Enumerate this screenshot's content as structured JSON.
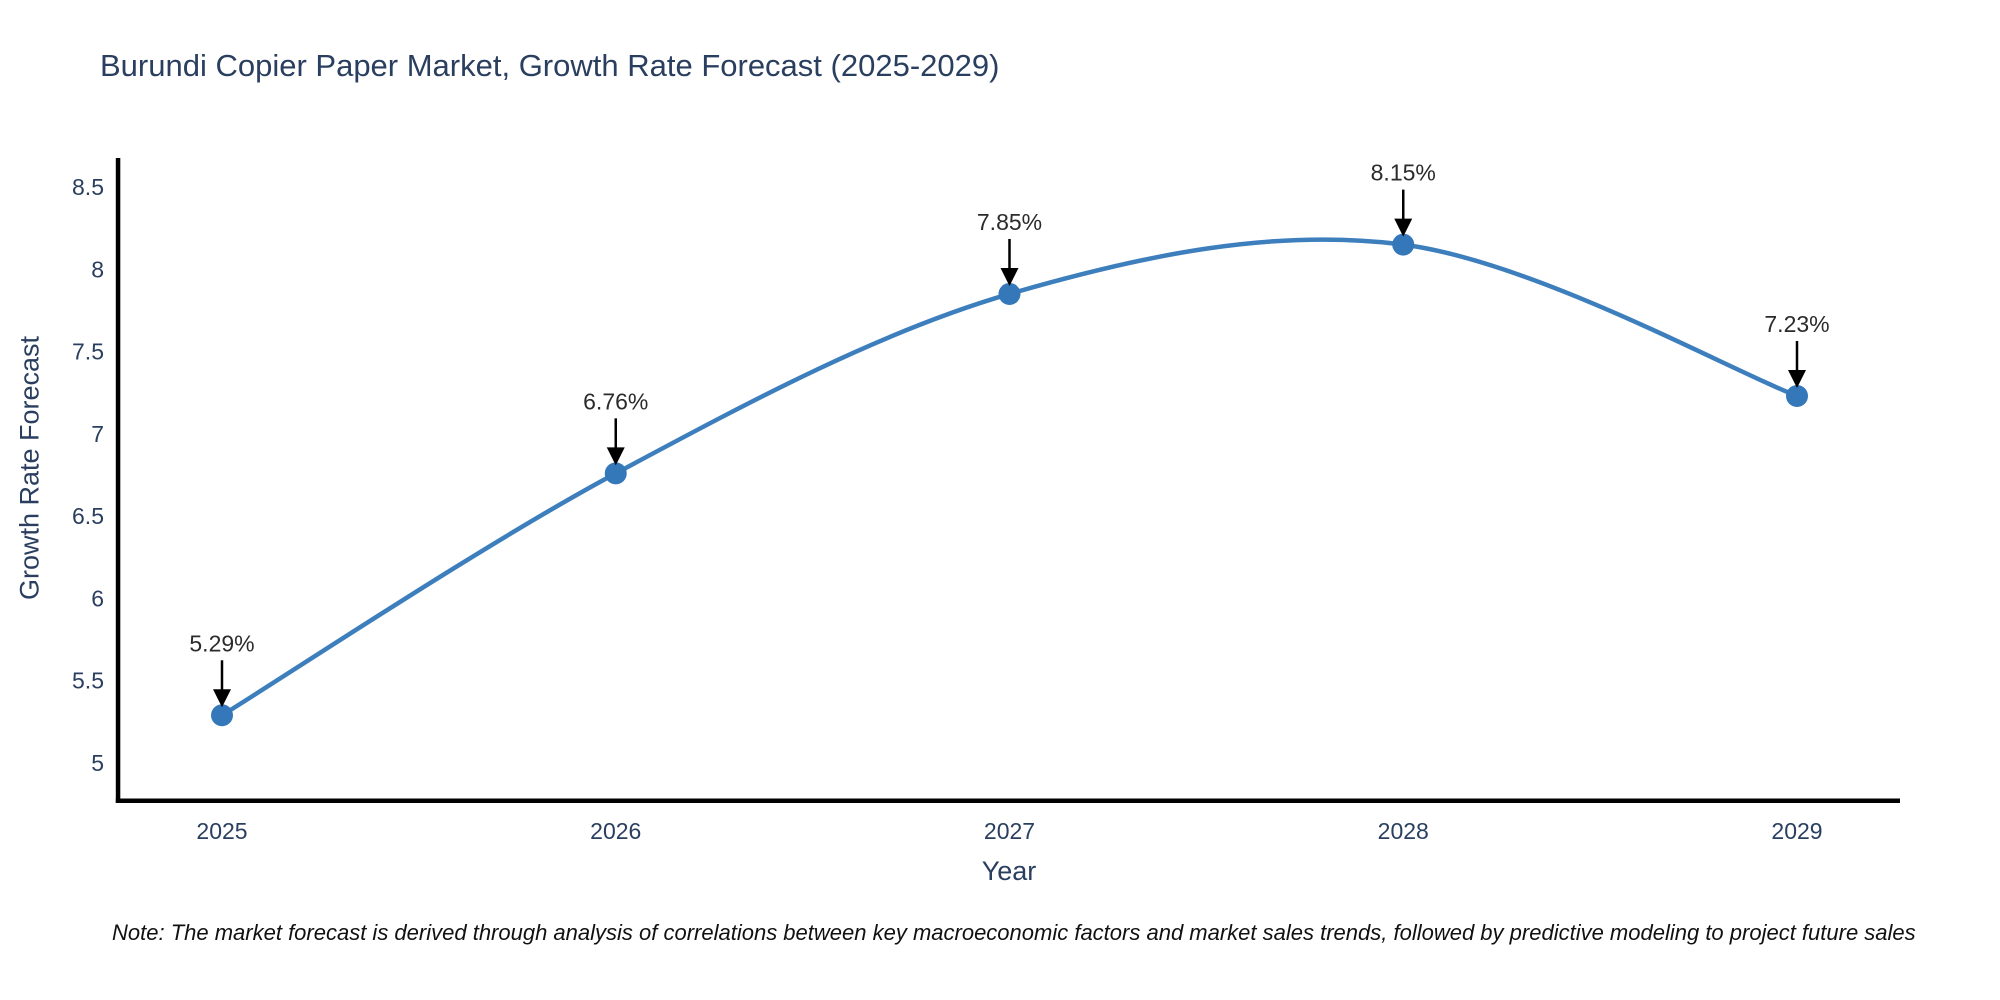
{
  "chart_data": {
    "type": "line",
    "line_shape": "spline",
    "title": "Burundi Copier Paper Market, Growth Rate Forecast (2025-2029)",
    "xlabel": "Year",
    "ylabel": "Growth Rate Forecast",
    "x": [
      2025,
      2026,
      2027,
      2028,
      2029
    ],
    "values": [
      5.29,
      6.76,
      7.85,
      8.15,
      7.23
    ],
    "point_labels": [
      "5.29%",
      "6.76%",
      "7.85%",
      "8.15%",
      "7.23%"
    ],
    "xtick_labels": [
      "2025",
      "2026",
      "2027",
      "2028",
      "2029"
    ],
    "yticks": [
      5,
      5.5,
      6,
      6.5,
      7,
      7.5,
      8,
      8.5
    ],
    "ytick_labels": [
      "5",
      "5.5",
      "6",
      "6.5",
      "7",
      "7.5",
      "8",
      "8.5"
    ],
    "ylim": [
      4.75,
      8.9
    ],
    "grid": false,
    "legend": "none",
    "colors": {
      "line": "#3d7ebd",
      "marker": "#3578b9",
      "axis": "#000000",
      "text": "#2a3f5f",
      "annotation": "#2b2b2b",
      "arrow": "#000000",
      "background": "#ffffff"
    }
  },
  "note": {
    "text": "Note: The market forecast is derived through analysis of correlations between key macroeconomic factors and market sales trends, followed by predictive modeling to project future sales"
  }
}
